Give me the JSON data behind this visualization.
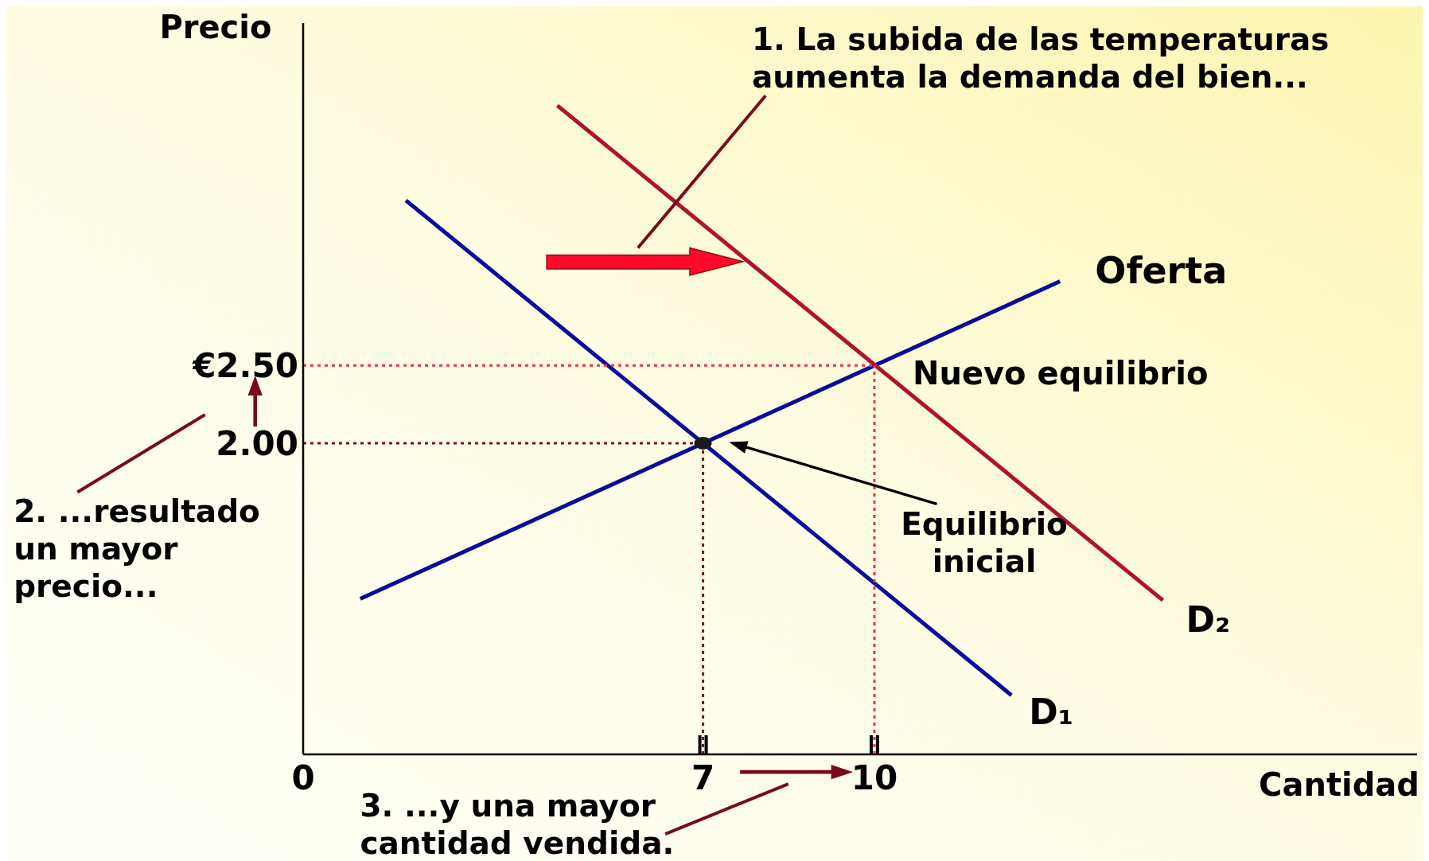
{
  "chart_data": {
    "type": "line",
    "xlabel": "Cantidad",
    "ylabel": "Precio",
    "xlim": [
      0,
      19.5
    ],
    "ylim": [
      0,
      4.7
    ],
    "xticks": [
      0,
      7,
      10
    ],
    "yticks": [
      {
        "value": 2,
        "label": "2.00"
      },
      {
        "value": 2.5,
        "label": "€2.50"
      }
    ],
    "grid": false,
    "legend": false,
    "marker": "none",
    "series": [
      {
        "name": "Oferta",
        "color": "#0a0a9c",
        "x": [
          1,
          13.25
        ],
        "values": [
          1.0,
          3.04
        ],
        "line_style": "solid"
      },
      {
        "name": "D₁",
        "color": "#0a0a9c",
        "x": [
          1.8,
          12.4
        ],
        "values": [
          3.56,
          0.38
        ],
        "line_style": "solid"
      },
      {
        "name": "D₂",
        "color": "#b0112f",
        "x": [
          4.45,
          15.05
        ],
        "values": [
          4.17,
          0.99
        ],
        "line_style": "solid"
      },
      {
        "color": "#7a1020",
        "x": [
          0,
          7
        ],
        "values": [
          2,
          2
        ],
        "line_style": "dotted"
      },
      {
        "color": "#7a1020",
        "x": [
          7,
          7
        ],
        "values": [
          0,
          2
        ],
        "line_style": "dotted"
      },
      {
        "color": "#ff2a4a",
        "x": [
          0,
          10
        ],
        "values": [
          2.5,
          2.5
        ],
        "line_style": "dotted"
      },
      {
        "color": "#ff2a4a",
        "x": [
          10,
          10
        ],
        "values": [
          0,
          2.5
        ],
        "line_style": "dotted"
      },
      {
        "type": "scatter",
        "color": "#1a1a1a",
        "x": [
          7
        ],
        "values": [
          2
        ],
        "marker": "circle"
      }
    ],
    "annotations": [
      "1.  La subida de las temperaturas\naumenta la demanda del bien...",
      "2. ...resultado\nun mayor\nprecio...",
      "3. ...y una mayor\ncantidad vendida.",
      {
        "text": "Nuevo equilibrio",
        "x": 10,
        "y": 2.5
      },
      "Equilibrio\ninicial"
    ]
  }
}
